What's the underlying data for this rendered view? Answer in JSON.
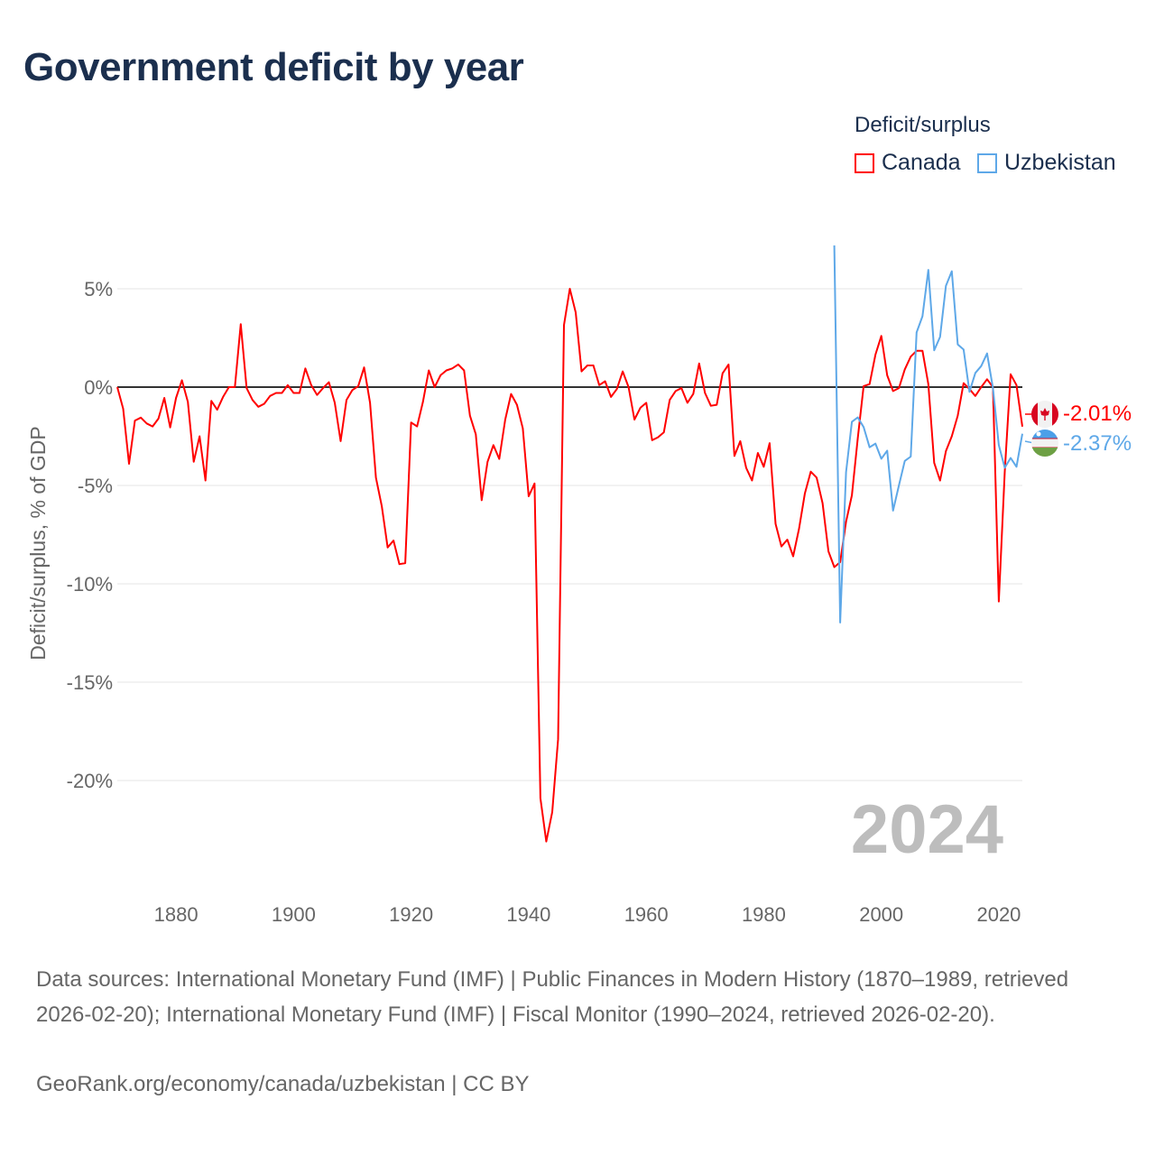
{
  "title": "Government deficit by year",
  "legend": {
    "title": "Deficit/surplus",
    "items": [
      {
        "name": "Canada",
        "color": "#ff0000"
      },
      {
        "name": "Uzbekistan",
        "color": "#5ea8e8"
      }
    ]
  },
  "year_watermark": "2024",
  "end_labels": [
    "-2.01%",
    "-2.37%"
  ],
  "footer": {
    "sources": "Data sources: International Monetary Fund (IMF) | Public Finances in Modern History (1870–1989, retrieved 2026-02-20); International Monetary Fund (IMF) | Fiscal Monitor (1990–2024, retrieved 2026-02-20).",
    "link": "GeoRank.org/economy/canada/uzbekistan | CC BY"
  },
  "chart_data": {
    "type": "line",
    "title": "Government deficit by year",
    "xlabel": "",
    "ylabel": "Deficit/surplus, % of GDP",
    "xlim": [
      1870,
      2024
    ],
    "ylim": [
      -25,
      7.2
    ],
    "grid": true,
    "legend_position": "top-right",
    "x_ticks": [
      1880,
      1900,
      1920,
      1940,
      1960,
      1980,
      2000,
      2020
    ],
    "x_tick_labels": [
      "1880",
      "1900",
      "1920",
      "1940",
      "1960",
      "1980",
      "2000",
      "2020"
    ],
    "y_ticks": [
      5,
      0,
      -5,
      -10,
      -15,
      -20
    ],
    "y_tick_labels": [
      "5%",
      "0%",
      "-5%",
      "-10%",
      "-15%",
      "-20%"
    ],
    "series": [
      {
        "name": "Canada",
        "color": "#ff0000",
        "start_year": 1870,
        "values": [
          0,
          -1.1,
          -3.9,
          -1.7,
          -1.55,
          -1.85,
          -2.0,
          -1.6,
          -0.55,
          -2.05,
          -0.55,
          0.35,
          -0.75,
          -3.8,
          -2.5,
          -4.75,
          -0.7,
          -1.15,
          -0.5,
          0,
          0,
          3.2,
          -0.05,
          -0.65,
          -1.0,
          -0.85,
          -0.45,
          -0.3,
          -0.3,
          0.1,
          -0.3,
          -0.3,
          0.95,
          0.1,
          -0.4,
          -0.05,
          0.25,
          -0.8,
          -2.75,
          -0.65,
          -0.15,
          0.05,
          1.0,
          -0.8,
          -4.6,
          -6.05,
          -8.15,
          -7.8,
          -9.0,
          -8.95,
          -1.8,
          -2.0,
          -0.75,
          0.85,
          0,
          0.6,
          0.85,
          0.95,
          1.15,
          0.85,
          -1.45,
          -2.4,
          -5.75,
          -3.8,
          -2.95,
          -3.65,
          -1.65,
          -0.35,
          -0.9,
          -2.1,
          -5.55,
          -4.9,
          -20.9,
          -23.1,
          -21.6,
          -17.9,
          3.15,
          5.0,
          3.8,
          0.8,
          1.1,
          1.1,
          0.1,
          0.3,
          -0.5,
          -0.1,
          0.8,
          0,
          -1.65,
          -1.05,
          -0.8,
          -2.7,
          -2.55,
          -2.3,
          -0.65,
          -0.2,
          -0.05,
          -0.8,
          -0.35,
          1.2,
          -0.3,
          -0.95,
          -0.9,
          0.7,
          1.15,
          -3.5,
          -2.75,
          -4.1,
          -4.75,
          -3.35,
          -4.05,
          -2.85,
          -6.95,
          -8.1,
          -7.75,
          -8.6,
          -7.2,
          -5.4,
          -4.3,
          -4.6,
          -5.9,
          -8.35,
          -9.15,
          -8.9,
          -6.85,
          -5.5,
          -2.6,
          0.05,
          0.15,
          1.65,
          2.6,
          0.6,
          -0.2,
          -0.05,
          0.9,
          1.55,
          1.85,
          1.85,
          0.15,
          -3.85,
          -4.75,
          -3.25,
          -2.5,
          -1.45,
          0.2,
          -0.1,
          -0.45,
          0.0,
          0.4,
          0.0,
          -10.9,
          -4.3,
          0.65,
          0.1,
          -2.01
        ]
      },
      {
        "name": "Uzbekistan",
        "color": "#5ea8e8",
        "start_year": 1992,
        "values": [
          7.2,
          -11.97,
          -4.33,
          -1.76,
          -1.54,
          -2.03,
          -3.06,
          -2.87,
          -3.64,
          -3.23,
          -6.28,
          -5.0,
          -3.75,
          -3.53,
          2.78,
          3.6,
          5.96,
          1.87,
          2.55,
          5.15,
          5.89,
          2.17,
          1.91,
          -0.24,
          0.72,
          1.07,
          1.71,
          -0.05,
          -2.95,
          -4.1,
          -3.6,
          -4.05,
          -2.37
        ]
      }
    ]
  }
}
